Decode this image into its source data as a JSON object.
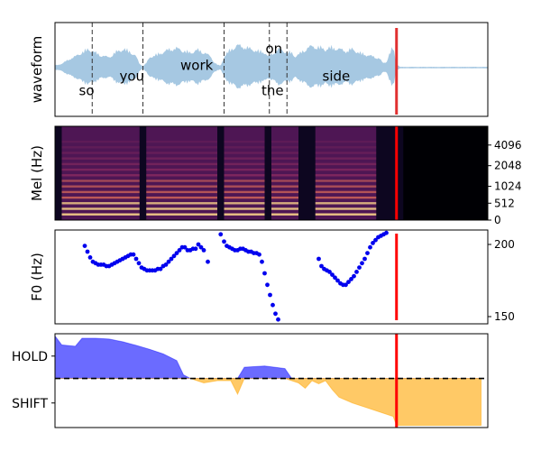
{
  "chart_data": [
    {
      "type": "area",
      "ylabel": "waveform",
      "words": [
        {
          "text": "so",
          "x": 0.03,
          "y": -0.55
        },
        {
          "text": "you",
          "x": 0.09,
          "y": -0.2
        },
        {
          "text": "work",
          "x": 0.18,
          "y": 0.05
        },
        {
          "text": "on",
          "x": 0.306,
          "y": 0.45
        },
        {
          "text": "the",
          "x": 0.3,
          "y": -0.55
        },
        {
          "text": "side",
          "x": 0.39,
          "y": -0.2
        }
      ],
      "word_boundaries": [
        0.055,
        0.13,
        0.25,
        0.317,
        0.343
      ],
      "current_time": 0.505,
      "envelope": [
        [
          0.0,
          0.06
        ],
        [
          0.01,
          0.1
        ],
        [
          0.02,
          0.22
        ],
        [
          0.03,
          0.3
        ],
        [
          0.04,
          0.42
        ],
        [
          0.05,
          0.5
        ],
        [
          0.06,
          0.4
        ],
        [
          0.07,
          0.32
        ],
        [
          0.08,
          0.28
        ],
        [
          0.09,
          0.42
        ],
        [
          0.1,
          0.5
        ],
        [
          0.11,
          0.45
        ],
        [
          0.12,
          0.3
        ],
        [
          0.125,
          0.1
        ],
        [
          0.13,
          0.04
        ],
        [
          0.135,
          0.12
        ],
        [
          0.14,
          0.28
        ],
        [
          0.15,
          0.35
        ],
        [
          0.16,
          0.42
        ],
        [
          0.17,
          0.5
        ],
        [
          0.18,
          0.52
        ],
        [
          0.19,
          0.46
        ],
        [
          0.2,
          0.4
        ],
        [
          0.21,
          0.48
        ],
        [
          0.22,
          0.42
        ],
        [
          0.23,
          0.3
        ],
        [
          0.235,
          0.15
        ],
        [
          0.24,
          0.08
        ],
        [
          0.245,
          0.05
        ],
        [
          0.25,
          0.3
        ],
        [
          0.26,
          0.5
        ],
        [
          0.27,
          0.6
        ],
        [
          0.28,
          0.56
        ],
        [
          0.29,
          0.5
        ],
        [
          0.3,
          0.45
        ],
        [
          0.31,
          0.42
        ],
        [
          0.315,
          0.3
        ],
        [
          0.32,
          0.36
        ],
        [
          0.33,
          0.5
        ],
        [
          0.34,
          0.45
        ],
        [
          0.35,
          0.4
        ],
        [
          0.355,
          0.3
        ],
        [
          0.36,
          0.35
        ],
        [
          0.37,
          0.5
        ],
        [
          0.38,
          0.58
        ],
        [
          0.39,
          0.55
        ],
        [
          0.4,
          0.5
        ],
        [
          0.41,
          0.55
        ],
        [
          0.42,
          0.5
        ],
        [
          0.43,
          0.45
        ],
        [
          0.44,
          0.5
        ],
        [
          0.45,
          0.4
        ],
        [
          0.46,
          0.35
        ],
        [
          0.47,
          0.3
        ],
        [
          0.48,
          0.25
        ],
        [
          0.485,
          0.12
        ],
        [
          0.49,
          0.15
        ],
        [
          0.495,
          0.4
        ],
        [
          0.5,
          0.55
        ],
        [
          0.505,
          0.1
        ],
        [
          0.51,
          0.02
        ],
        [
          0.64,
          0.02
        ]
      ],
      "xlim": [
        0,
        0.64
      ]
    },
    {
      "type": "heatmap",
      "ylabel": "Mel (Hz)",
      "yticks": [
        "0",
        "512",
        "1024",
        "2048",
        "4096"
      ],
      "current_time": 0.505,
      "voiced_segments": [
        [
          0.01,
          0.125
        ],
        [
          0.135,
          0.24
        ],
        [
          0.25,
          0.31
        ],
        [
          0.32,
          0.36
        ],
        [
          0.385,
          0.475
        ]
      ],
      "silence_start": 0.515,
      "xlim": [
        0,
        0.64
      ]
    },
    {
      "type": "scatter",
      "ylabel": "F0 (Hz)",
      "yticks": [
        150,
        200
      ],
      "ylim": [
        145,
        210
      ],
      "current_time": 0.505,
      "x": [
        0.044,
        0.048,
        0.052,
        0.056,
        0.06,
        0.064,
        0.068,
        0.072,
        0.076,
        0.08,
        0.084,
        0.088,
        0.092,
        0.096,
        0.1,
        0.104,
        0.108,
        0.112,
        0.116,
        0.12,
        0.124,
        0.128,
        0.132,
        0.136,
        0.14,
        0.144,
        0.148,
        0.152,
        0.156,
        0.16,
        0.164,
        0.168,
        0.172,
        0.176,
        0.18,
        0.184,
        0.188,
        0.192,
        0.196,
        0.2,
        0.204,
        0.208,
        0.212,
        0.216,
        0.22,
        0.226,
        0.245,
        0.25,
        0.254,
        0.258,
        0.262,
        0.266,
        0.27,
        0.274,
        0.278,
        0.282,
        0.286,
        0.29,
        0.294,
        0.298,
        0.302,
        0.306,
        0.31,
        0.314,
        0.318,
        0.322,
        0.326,
        0.33,
        0.39,
        0.394,
        0.398,
        0.402,
        0.406,
        0.41,
        0.414,
        0.418,
        0.422,
        0.426,
        0.43,
        0.434,
        0.438,
        0.442,
        0.446,
        0.45,
        0.454,
        0.458,
        0.462,
        0.466,
        0.47,
        0.474,
        0.478,
        0.482,
        0.486,
        0.49
      ],
      "values": [
        199,
        195,
        191,
        188,
        187,
        186,
        186,
        186,
        185,
        185,
        186,
        187,
        188,
        189,
        190,
        191,
        192,
        193,
        193,
        190,
        187,
        184,
        183,
        182,
        182,
        182,
        182,
        183,
        183,
        185,
        186,
        188,
        190,
        192,
        194,
        196,
        198,
        198,
        196,
        196,
        197,
        197,
        200,
        198,
        196,
        188,
        207,
        202,
        199,
        198,
        197,
        196,
        196,
        197,
        197,
        196,
        195,
        195,
        194,
        194,
        193,
        188,
        180,
        172,
        165,
        158,
        152,
        148,
        190,
        185,
        183,
        182,
        181,
        179,
        177,
        175,
        173,
        172,
        172,
        174,
        176,
        178,
        181,
        184,
        187,
        190,
        194,
        198,
        201,
        203,
        205,
        206,
        207,
        208
      ],
      "xlim": [
        0,
        0.64
      ]
    },
    {
      "type": "area",
      "yticks": [
        "HOLD",
        "SHIFT"
      ],
      "ylim": [
        -1.1,
        1.0
      ],
      "baseline": 0,
      "current_time": 0.505,
      "series": [
        {
          "values": [
            [
              0.0,
              0.95
            ],
            [
              0.01,
              0.75
            ],
            [
              0.03,
              0.72
            ],
            [
              0.04,
              0.9
            ],
            [
              0.06,
              0.9
            ],
            [
              0.08,
              0.88
            ],
            [
              0.1,
              0.82
            ],
            [
              0.12,
              0.74
            ],
            [
              0.14,
              0.65
            ],
            [
              0.16,
              0.55
            ],
            [
              0.18,
              0.4
            ],
            [
              0.19,
              0.08
            ],
            [
              0.2,
              0.0
            ],
            [
              0.22,
              -0.1
            ],
            [
              0.24,
              -0.05
            ],
            [
              0.26,
              -0.05
            ],
            [
              0.27,
              -0.35
            ],
            [
              0.28,
              0.25
            ],
            [
              0.31,
              0.28
            ],
            [
              0.33,
              0.24
            ],
            [
              0.34,
              0.22
            ],
            [
              0.35,
              -0.05
            ],
            [
              0.36,
              -0.1
            ],
            [
              0.37,
              -0.22
            ],
            [
              0.38,
              -0.05
            ],
            [
              0.39,
              -0.12
            ],
            [
              0.4,
              -0.05
            ],
            [
              0.41,
              -0.25
            ],
            [
              0.42,
              -0.42
            ],
            [
              0.44,
              -0.55
            ],
            [
              0.46,
              -0.65
            ],
            [
              0.48,
              -0.75
            ],
            [
              0.5,
              -0.85
            ],
            [
              0.505,
              -1.05
            ],
            [
              0.52,
              -1.05
            ],
            [
              0.63,
              -1.05
            ]
          ]
        }
      ],
      "colors": {
        "hold": "#0000ff",
        "shift": "#ffa500",
        "cursor": "#ff0000"
      },
      "xlim": [
        0,
        0.64
      ]
    }
  ]
}
